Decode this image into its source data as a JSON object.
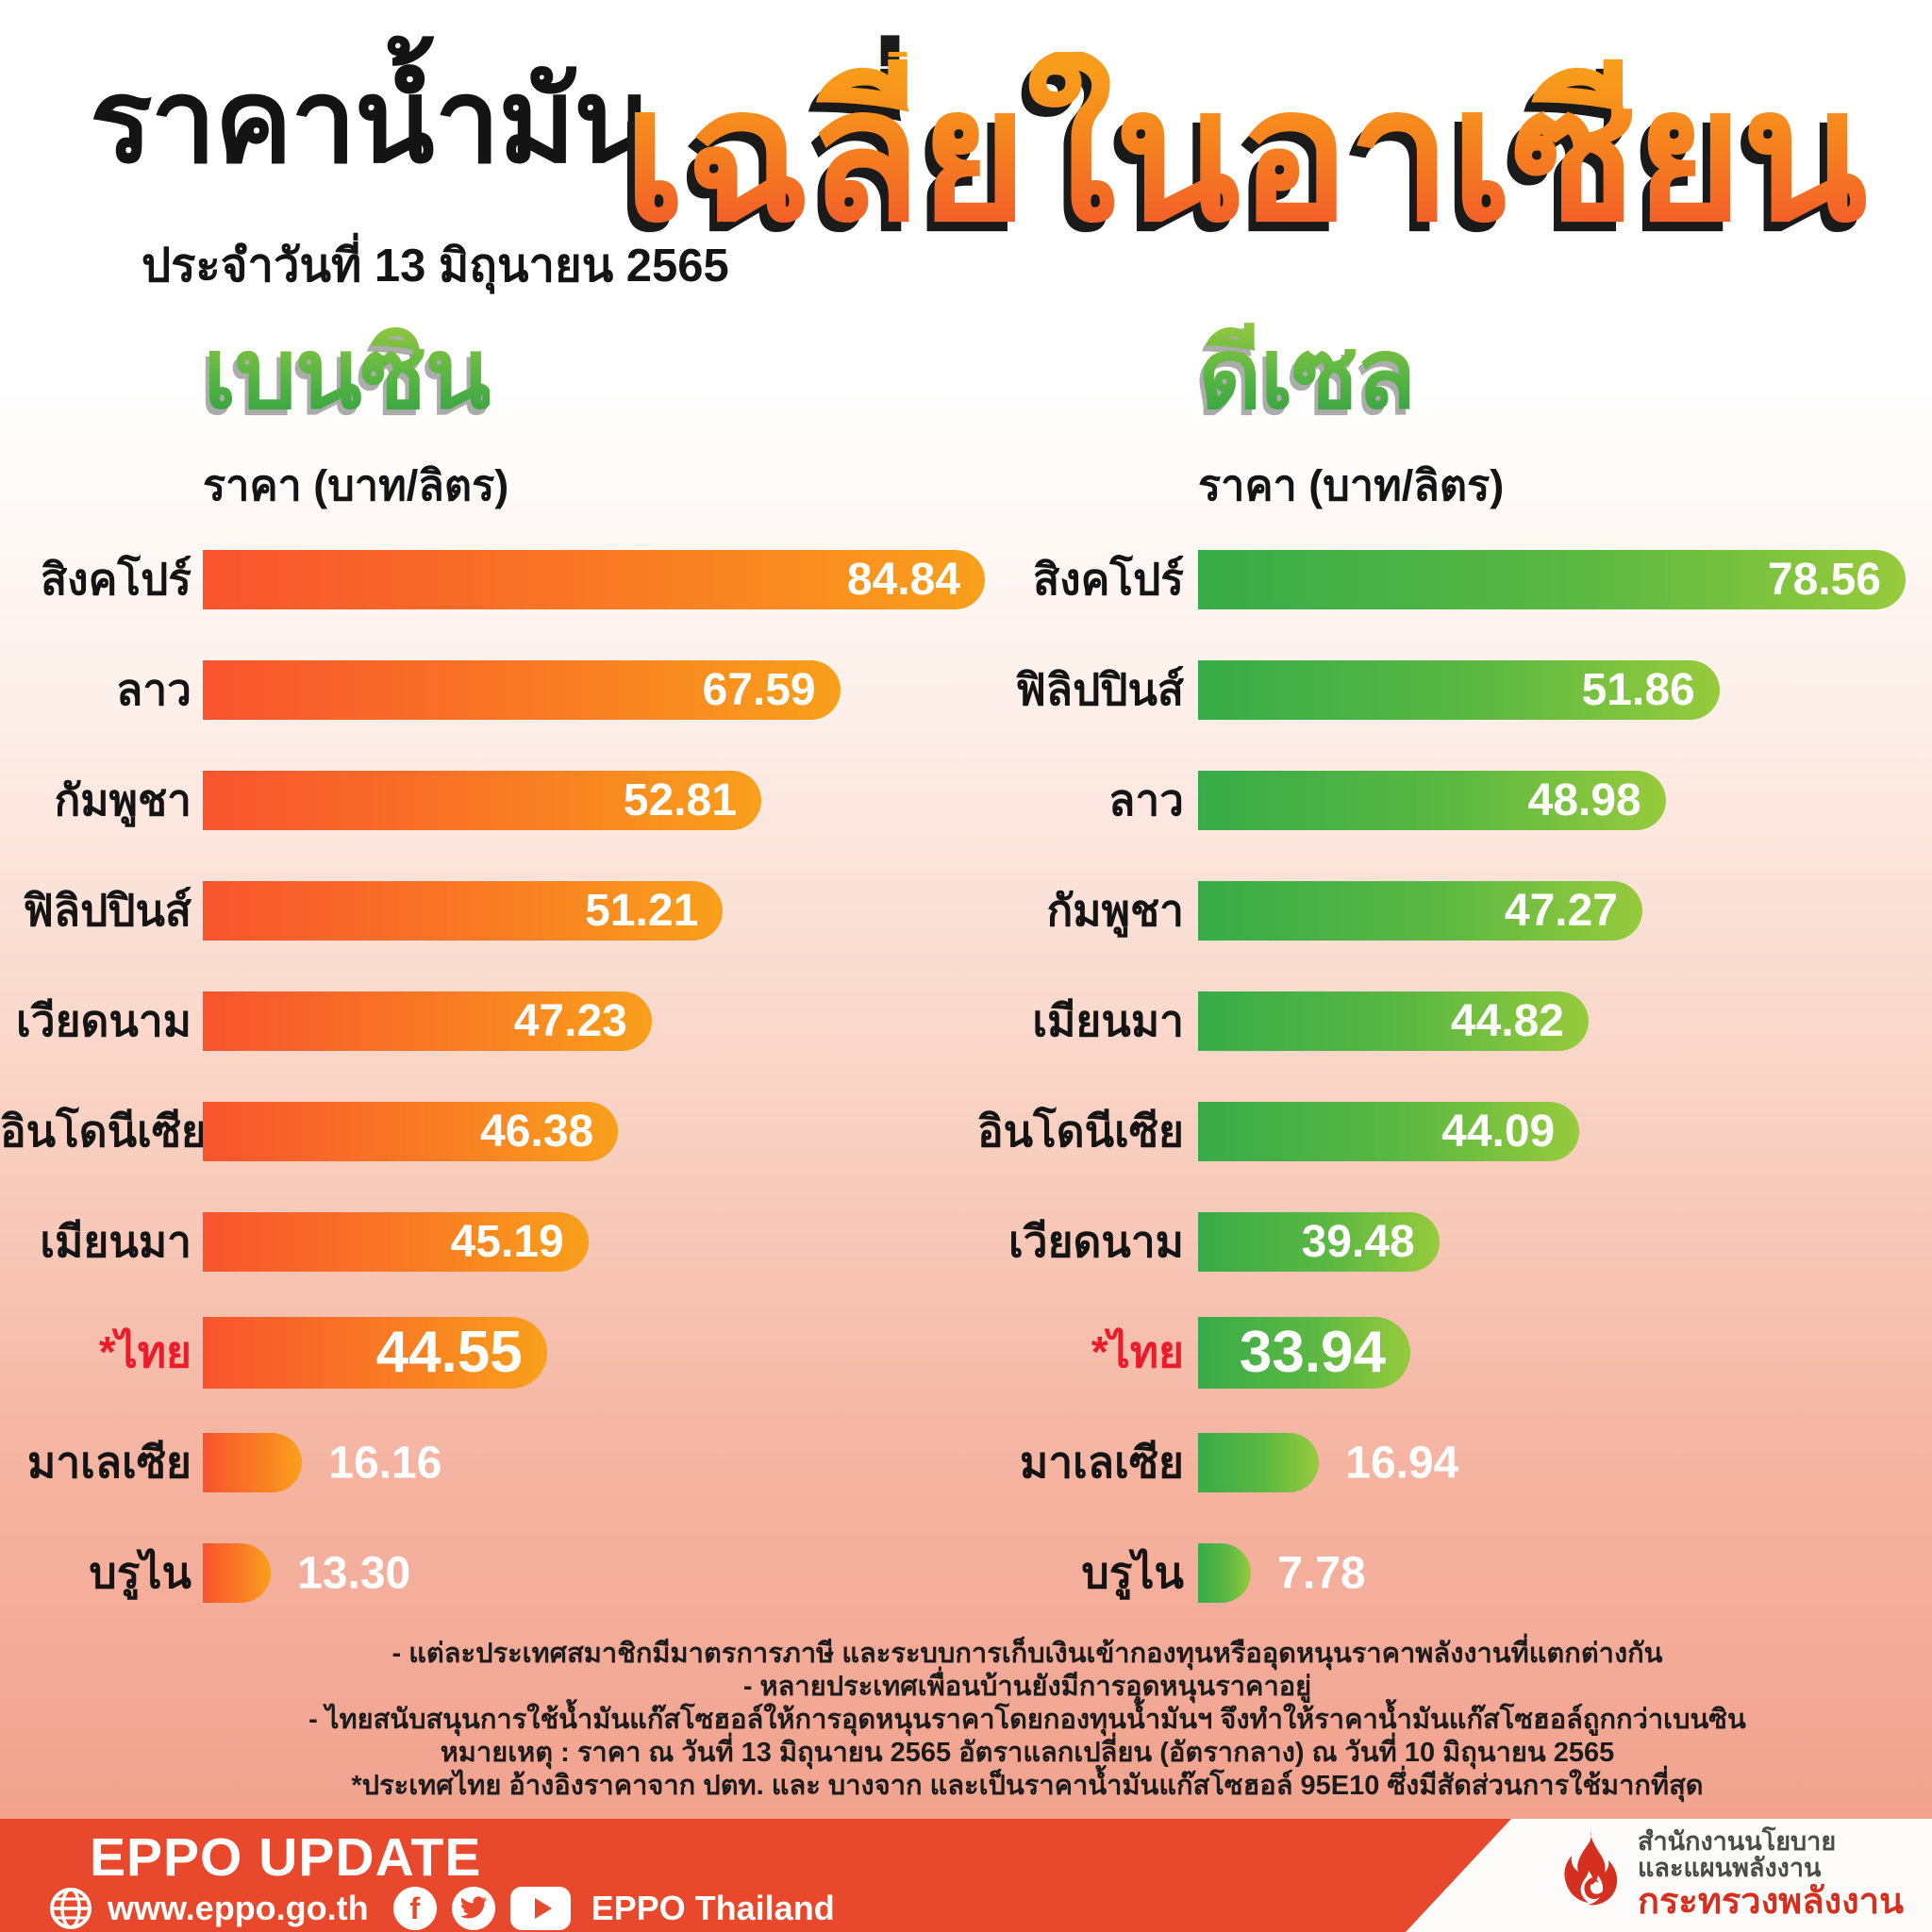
{
  "header": {
    "title_black": "ราคาน้ำมัน",
    "subtitle": "ประจำวันที่ 13 มิถุนายน 2565",
    "title_orange": "เฉลี่ยในอาเซียน"
  },
  "chart_data": [
    {
      "type": "bar",
      "orientation": "horizontal",
      "title": "เบนซิน",
      "unit_label": "ราคา (บาท/ลิตร)",
      "xlim": [
        0,
        84.84
      ],
      "categories": [
        "สิงคโปร์",
        "ลาว",
        "กัมพูชา",
        "ฟิลิปปินส์",
        "เวียดนาม",
        "อินโดนีเซีย",
        "เมียนมา",
        "*ไทย",
        "มาเลเซีย",
        "บรูไน"
      ],
      "values": [
        84.84,
        67.59,
        52.81,
        51.21,
        47.23,
        46.38,
        45.19,
        44.55,
        16.16,
        13.3
      ],
      "value_labels": [
        "84.84",
        "67.59",
        "52.81",
        "51.21",
        "47.23",
        "46.38",
        "45.19",
        "44.55",
        "16.16",
        "13.30"
      ],
      "bar_pct": [
        100,
        81.5,
        71.4,
        66.5,
        57.4,
        53.1,
        49.3,
        44.0,
        12.7,
        8.7
      ],
      "highlight_index": 7,
      "value_outside_indices": [
        8,
        9
      ]
    },
    {
      "type": "bar",
      "orientation": "horizontal",
      "title": "ดีเซล",
      "unit_label": "ราคา (บาท/ลิตร)",
      "xlim": [
        0,
        78.56
      ],
      "categories": [
        "สิงคโปร์",
        "ฟิลิปปินส์",
        "ลาว",
        "กัมพูชา",
        "เมียนมา",
        "อินโดนีเซีย",
        "เวียดนาม",
        "*ไทย",
        "มาเลเซีย",
        "บรูไน"
      ],
      "values": [
        78.56,
        51.86,
        48.98,
        47.27,
        44.82,
        44.09,
        39.48,
        33.94,
        16.94,
        7.78
      ],
      "value_labels": [
        "78.56",
        "51.86",
        "48.98",
        "47.27",
        "44.82",
        "44.09",
        "39.48",
        "33.94",
        "16.94",
        "7.78"
      ],
      "bar_pct": [
        100,
        73.7,
        66.1,
        62.8,
        55.2,
        53.9,
        34.1,
        30.0,
        17.1,
        7.5
      ],
      "highlight_index": 7,
      "value_outside_indices": [
        8,
        9
      ]
    }
  ],
  "footnotes": [
    "- แต่ละประเทศสมาชิกมีมาตรการภาษี และระบบการเก็บเงินเข้ากองทุนหรืออุดหนุนราคาพลังงานที่แตกต่างกัน",
    "- หลายประเทศเพื่อนบ้านยังมีการอุดหนุนราคาอยู่",
    "- ไทยสนับสนุนการใช้น้ำมันแก๊สโซฮอล์ให้การอุดหนุนราคาโดยกองทุนน้ำมันฯ จึงทำให้ราคาน้ำมันแก๊สโซฮอล์ถูกกว่าเบนซิน",
    "หมายเหตุ : ราคา ณ วันที่ 13 มิถุนายน 2565 อัตราแลกเปลี่ยน (อัตรากลาง) ณ วันที่ 10 มิถุนายน 2565",
    "*ประเทศไทย อ้างอิงราคาจาก ปตท. และ บางจาก และเป็นราคาน้ำมันแก๊สโซฮอล์ 95E10 ซึ่งมีสัดส่วนการใช้มากที่สุด"
  ],
  "footer": {
    "brand": "EPPO UPDATE",
    "website": "www.eppo.go.th",
    "social_label": "EPPO Thailand",
    "facebook_glyph": "f",
    "org_line1": "สำนักงานนโยบาย",
    "org_line2": "และแผนพลังงาน",
    "org_line3": "กระทรวงพลังงาน"
  },
  "icons": {
    "website": "globe-icon",
    "social": [
      "facebook-icon",
      "twitter-icon",
      "youtube-icon"
    ],
    "logo": "flame-icon"
  },
  "colors": {
    "benzine_bar_start": "#f8542e",
    "benzine_bar_end": "#f9a01b",
    "diesel_bar_start": "#38ab48",
    "diesel_bar_end": "#97cb3c",
    "title_orange_top": "#f89c1b",
    "title_orange_bottom": "#f2552c",
    "title_green_top": "#8cc63f",
    "title_green_bottom": "#2e9e41",
    "highlight_label": "#ec1c2b",
    "footer_bar": "#e8492c",
    "org_red": "#d52f1f",
    "background_bottom": "#f1a28e"
  }
}
